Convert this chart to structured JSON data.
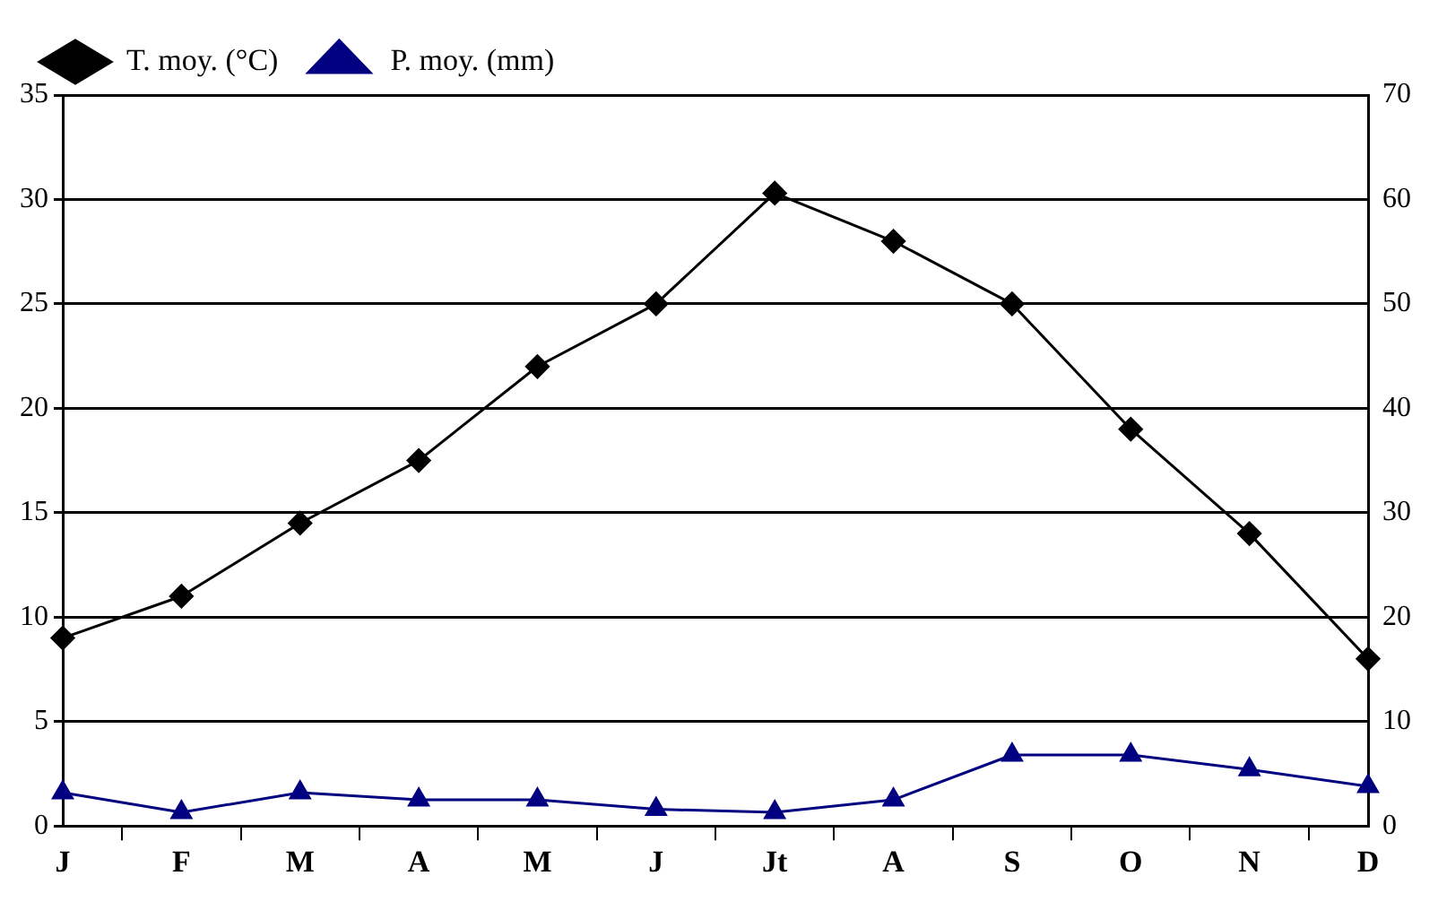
{
  "chart_data": {
    "type": "line",
    "categories": [
      "J",
      "F",
      "M",
      "A",
      "M",
      "J",
      "Jt",
      "A",
      "S",
      "O",
      "N",
      "D"
    ],
    "series": [
      {
        "name": "T. moy. (°C)",
        "color": "#000000",
        "marker": "diamond",
        "values": [
          9,
          11,
          14.5,
          17.5,
          22,
          25,
          30.3,
          28,
          25,
          19,
          14,
          8
        ]
      },
      {
        "name": "P. moy. (mm)",
        "color": "#000080",
        "marker": "triangle",
        "axis": "y2",
        "values": [
          3.2,
          1.3,
          3.2,
          2.5,
          2.5,
          1.6,
          1.3,
          2.5,
          6.8,
          6.8,
          5.4,
          3.8
        ]
      }
    ],
    "ylim": [
      0,
      35
    ],
    "yticks": [
      0,
      5,
      10,
      15,
      20,
      25,
      30,
      35
    ],
    "y2lim": [
      0,
      70
    ],
    "y2ticks": [
      0,
      10,
      20,
      30,
      40,
      50,
      60,
      70
    ],
    "grid": "y",
    "legend": "top left",
    "line_style": "solid"
  }
}
